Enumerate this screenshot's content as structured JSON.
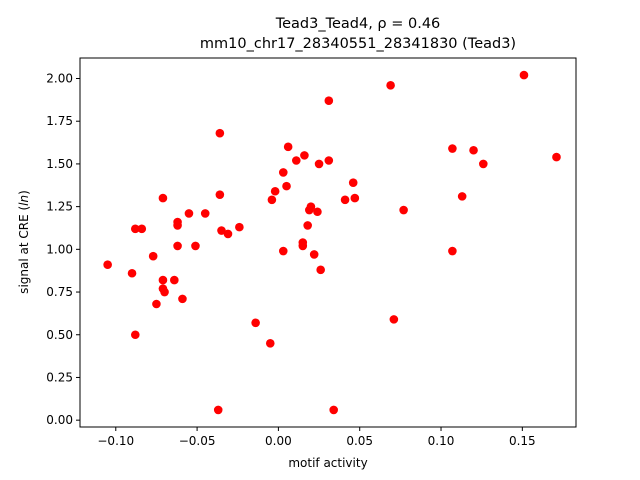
{
  "chart_data": {
    "type": "scatter",
    "title_line1": "Tead3_Tead4, ρ = 0.46",
    "title_line2": "mm10_chr17_28340551_28341830 (Tead3)",
    "xlabel": "motif activity",
    "ylabel": "signal at CRE (ln)",
    "xlim": [
      -0.122,
      0.183
    ],
    "ylim": [
      -0.04,
      2.12
    ],
    "x_ticks": [
      -0.1,
      -0.05,
      0.0,
      0.05,
      0.1,
      0.15
    ],
    "x_tick_labels": [
      "−0.10",
      "−0.05",
      "0.00",
      "0.05",
      "0.10",
      "0.15"
    ],
    "y_ticks": [
      0.0,
      0.25,
      0.5,
      0.75,
      1.0,
      1.25,
      1.5,
      1.75,
      2.0
    ],
    "y_tick_labels": [
      "0.00",
      "0.25",
      "0.50",
      "0.75",
      "1.00",
      "1.25",
      "1.50",
      "1.75",
      "2.00"
    ],
    "grid": false,
    "point_color": "#ff0000",
    "series": [
      {
        "points": [
          [
            -0.105,
            0.91
          ],
          [
            -0.09,
            0.86
          ],
          [
            -0.088,
            1.12
          ],
          [
            -0.088,
            0.5
          ],
          [
            -0.084,
            1.12
          ],
          [
            -0.077,
            0.96
          ],
          [
            -0.075,
            0.68
          ],
          [
            -0.071,
            1.3
          ],
          [
            -0.071,
            0.82
          ],
          [
            -0.071,
            0.77
          ],
          [
            -0.07,
            0.75
          ],
          [
            -0.064,
            0.82
          ],
          [
            -0.062,
            1.16
          ],
          [
            -0.062,
            1.14
          ],
          [
            -0.062,
            1.02
          ],
          [
            -0.059,
            0.71
          ],
          [
            -0.055,
            1.21
          ],
          [
            -0.051,
            1.02
          ],
          [
            -0.045,
            1.21
          ],
          [
            -0.036,
            1.68
          ],
          [
            -0.036,
            1.32
          ],
          [
            -0.035,
            1.11
          ],
          [
            -0.031,
            1.09
          ],
          [
            -0.024,
            1.13
          ],
          [
            -0.037,
            0.06
          ],
          [
            -0.014,
            0.57
          ],
          [
            -0.005,
            0.45
          ],
          [
            -0.004,
            1.29
          ],
          [
            -0.002,
            1.34
          ],
          [
            0.003,
            1.45
          ],
          [
            0.003,
            0.99
          ],
          [
            0.005,
            1.37
          ],
          [
            0.006,
            1.6
          ],
          [
            0.011,
            1.52
          ],
          [
            0.015,
            1.02
          ],
          [
            0.015,
            1.04
          ],
          [
            0.016,
            1.55
          ],
          [
            0.018,
            1.14
          ],
          [
            0.019,
            1.23
          ],
          [
            0.02,
            1.25
          ],
          [
            0.022,
            0.97
          ],
          [
            0.024,
            1.22
          ],
          [
            0.025,
            1.5
          ],
          [
            0.026,
            0.88
          ],
          [
            0.031,
            1.87
          ],
          [
            0.031,
            1.52
          ],
          [
            0.034,
            0.06
          ],
          [
            0.041,
            1.29
          ],
          [
            0.046,
            1.39
          ],
          [
            0.047,
            1.3
          ],
          [
            0.069,
            1.96
          ],
          [
            0.071,
            0.59
          ],
          [
            0.077,
            1.23
          ],
          [
            0.107,
            1.59
          ],
          [
            0.107,
            0.99
          ],
          [
            0.113,
            1.31
          ],
          [
            0.12,
            1.58
          ],
          [
            0.126,
            1.5
          ],
          [
            0.151,
            2.02
          ],
          [
            0.171,
            1.54
          ]
        ]
      }
    ]
  }
}
